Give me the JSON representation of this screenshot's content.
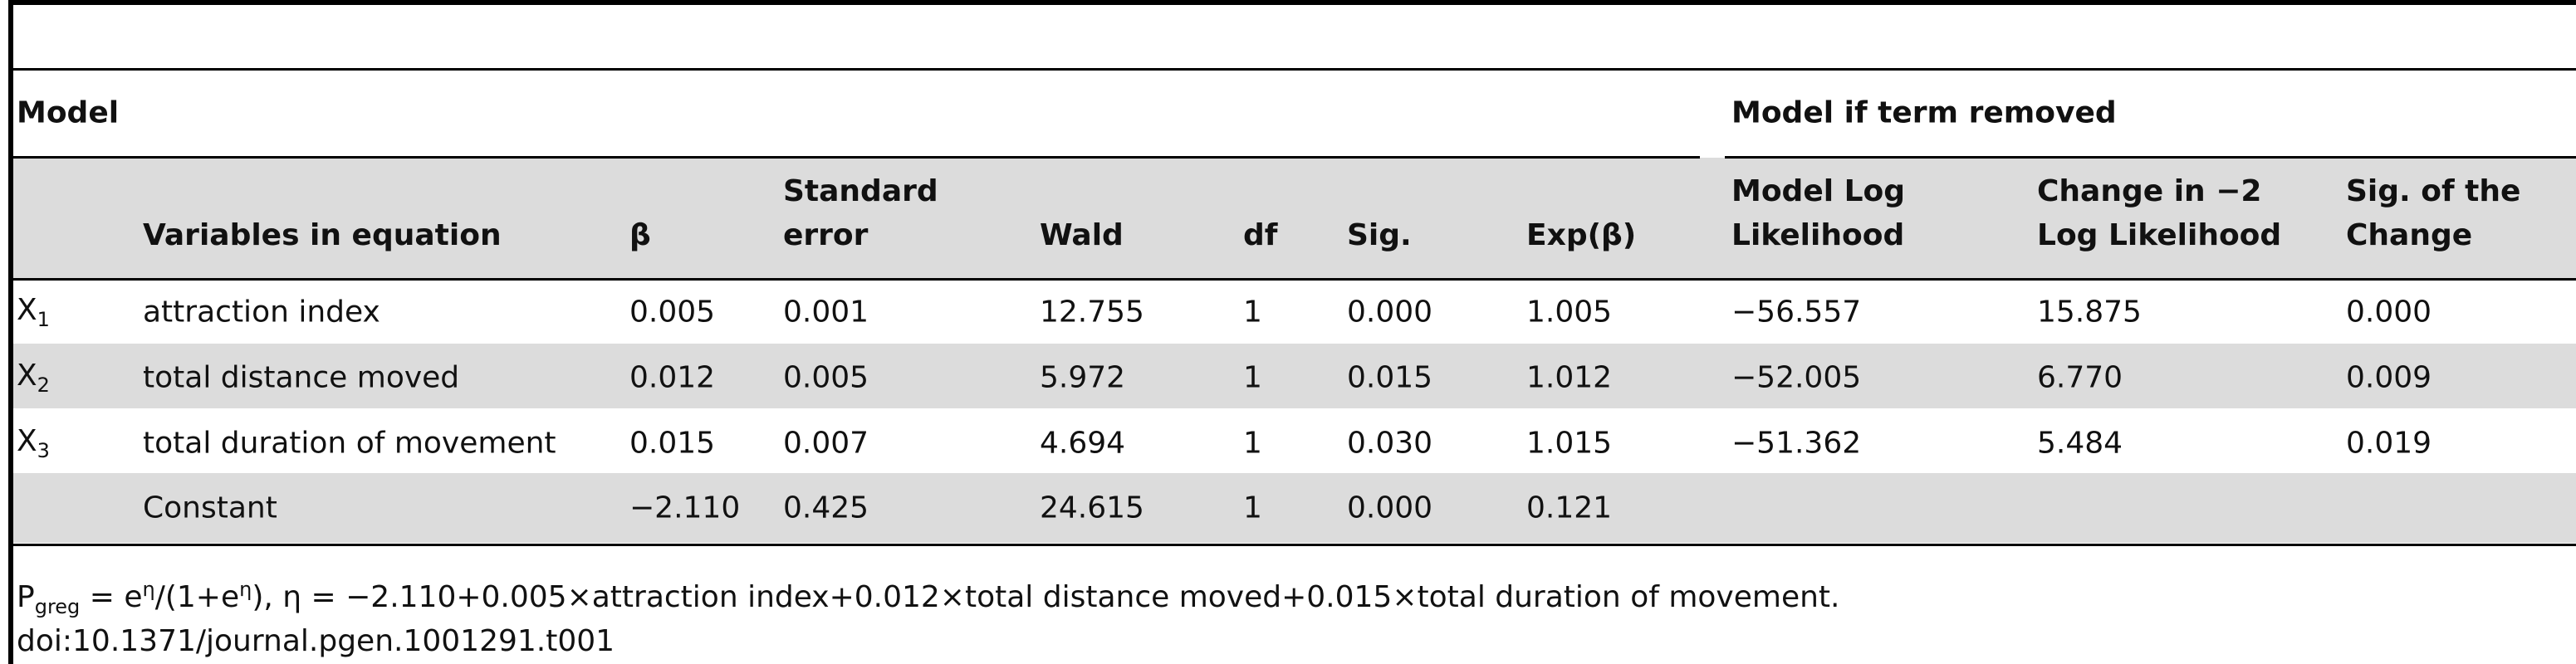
{
  "table": {
    "group_headers": [
      "Model",
      "Model if term removed"
    ],
    "columns": [
      "Variables in equation",
      "β",
      "Standard\nerror",
      "Wald",
      "df",
      "Sig.",
      "Exp(β)",
      "Model Log\nLikelihood",
      "Change in −2\nLog Likelihood",
      "Sig. of the\nChange"
    ],
    "rows": [
      {
        "label": {
          "base": "X",
          "sub": "1"
        },
        "cells": [
          "attraction index",
          "0.005",
          "0.001",
          "12.755",
          "1",
          "0.000",
          "1.005",
          "−56.557",
          "15.875",
          "0.000"
        ]
      },
      {
        "label": {
          "base": "X",
          "sub": "2"
        },
        "cells": [
          "total distance moved",
          "0.012",
          "0.005",
          "5.972",
          "1",
          "0.015",
          "1.012",
          "−52.005",
          "6.770",
          "0.009"
        ]
      },
      {
        "label": {
          "base": "X",
          "sub": "3"
        },
        "cells": [
          "total duration of movement",
          "0.015",
          "0.007",
          "4.694",
          "1",
          "0.030",
          "1.015",
          "−51.362",
          "5.484",
          "0.019"
        ]
      },
      {
        "cells": [
          "Constant",
          "−2.110",
          "0.425",
          "24.615",
          "1",
          "0.000",
          "0.121"
        ]
      }
    ]
  },
  "footnote": [
    "P",
    "greg",
    " = e",
    "η",
    "/(1+e",
    "η",
    "), η = −2.110+0.005×attraction index+0.012×total distance moved+0.015×total duration of movement."
  ],
  "doi": "doi:10.1371/journal.pgen.1001291.t001"
}
